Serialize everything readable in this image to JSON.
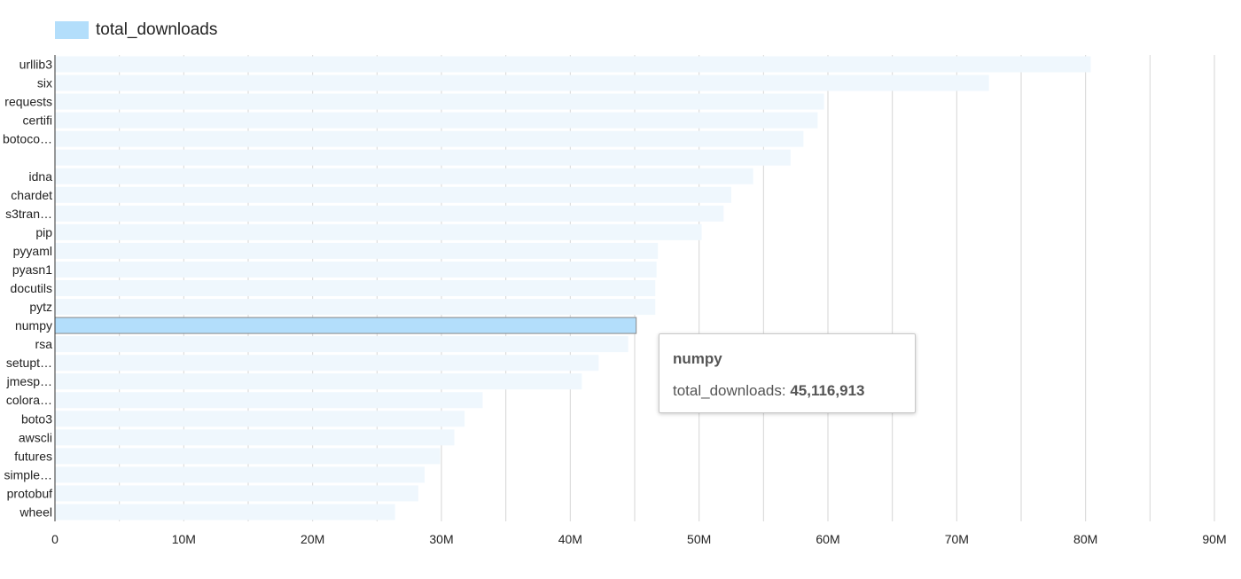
{
  "chart_data": {
    "type": "bar",
    "orientation": "horizontal",
    "categories": [
      "urllib3",
      "six",
      "requests",
      "certifi",
      "botoco…",
      "",
      "idna",
      "chardet",
      "s3tran…",
      "pip",
      "pyyaml",
      "pyasn1",
      "docutils",
      "pytz",
      "numpy",
      "rsa",
      "setupt…",
      "jmesp…",
      "colora…",
      "boto3",
      "awscli",
      "futures",
      "simple…",
      "protobuf",
      "wheel"
    ],
    "series": [
      {
        "name": "total_downloads",
        "values": [
          80400000,
          72500000,
          59700000,
          59200000,
          58100000,
          57100000,
          54200000,
          52500000,
          51900000,
          50200000,
          46800000,
          46700000,
          46600000,
          46600000,
          45116913,
          44500000,
          42200000,
          40900000,
          33200000,
          31800000,
          31000000,
          29900000,
          28700000,
          28200000,
          26400000
        ]
      }
    ],
    "xlim": [
      0,
      90000000
    ],
    "xticks": [
      0,
      10000000,
      20000000,
      30000000,
      40000000,
      50000000,
      60000000,
      70000000,
      80000000,
      90000000
    ],
    "xtick_labels": [
      "0",
      "10M",
      "20M",
      "30M",
      "40M",
      "50M",
      "60M",
      "70M",
      "80M",
      "90M"
    ],
    "grid": true,
    "legend": "top-left",
    "colors": {
      "bar": "#b3defb",
      "bar_faded": "#eff7fd",
      "grid": "#d6d6d6",
      "axis": "#333333"
    },
    "highlighted_index": 14
  },
  "tooltip": {
    "title": "numpy",
    "series_label": "total_downloads: ",
    "value": "45,116,913"
  }
}
